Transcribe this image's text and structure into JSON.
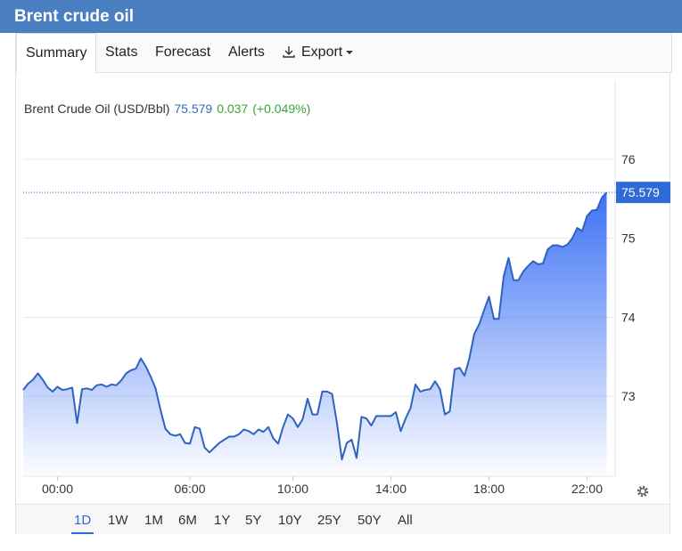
{
  "header": {
    "title": "Brent crude oil"
  },
  "tabs": [
    "Summary",
    "Stats",
    "Forecast",
    "Alerts",
    "Export"
  ],
  "chart_data": {
    "type": "line",
    "legend_label": "Brent Crude Oil (USD/Bbl)",
    "last_price": 75.579,
    "change": 0.037,
    "change_pct": "(+0.049%)",
    "series": [
      {
        "name": "Brent Crude Oil",
        "color": "#2f63c0",
        "values": [
          73.08,
          73.16,
          73.21,
          73.29,
          73.21,
          73.11,
          73.06,
          73.12,
          73.08,
          73.09,
          73.11,
          72.66,
          73.09,
          73.1,
          73.08,
          73.14,
          73.15,
          73.12,
          73.15,
          73.14,
          73.2,
          73.29,
          73.33,
          73.35,
          73.48,
          73.38,
          73.25,
          73.1,
          72.83,
          72.59,
          72.52,
          72.5,
          72.52,
          72.41,
          72.4,
          72.61,
          72.59,
          72.35,
          72.29,
          72.35,
          72.41,
          72.45,
          72.49,
          72.49,
          72.52,
          72.58,
          72.56,
          72.52,
          72.58,
          72.55,
          72.61,
          72.47,
          72.4,
          72.61,
          72.77,
          72.72,
          72.61,
          72.71,
          72.97,
          72.77,
          72.77,
          73.06,
          73.06,
          73.03,
          72.66,
          72.2,
          72.41,
          72.45,
          72.22,
          72.74,
          72.72,
          72.63,
          72.75,
          72.75,
          72.75,
          72.75,
          72.8,
          72.56,
          72.72,
          72.85,
          73.15,
          73.06,
          73.08,
          73.09,
          73.19,
          73.09,
          72.77,
          72.81,
          73.34,
          73.36,
          73.26,
          73.48,
          73.79,
          73.91,
          74.09,
          74.26,
          73.98,
          73.98,
          74.52,
          74.75,
          74.47,
          74.47,
          74.58,
          74.65,
          74.71,
          74.67,
          74.68,
          74.86,
          74.91,
          74.91,
          74.89,
          74.92,
          75.0,
          75.13,
          75.09,
          75.28,
          75.35,
          75.36,
          75.51,
          75.579
        ]
      }
    ],
    "xticks": [
      {
        "value": 7,
        "label": "00:00"
      },
      {
        "value": 34,
        "label": "06:00"
      },
      {
        "value": 55,
        "label": "10:00"
      },
      {
        "value": 75,
        "label": "14:00"
      },
      {
        "value": 95,
        "label": "18:00"
      },
      {
        "value": 115,
        "label": "22:00"
      }
    ],
    "ylim": [
      72,
      77
    ],
    "yticks": [
      73,
      74,
      75,
      76
    ],
    "grid": true
  },
  "ranges": [
    "1D",
    "1W",
    "1M",
    "6M",
    "1Y",
    "5Y",
    "10Y",
    "25Y",
    "50Y",
    "All"
  ],
  "active_range": "1D"
}
